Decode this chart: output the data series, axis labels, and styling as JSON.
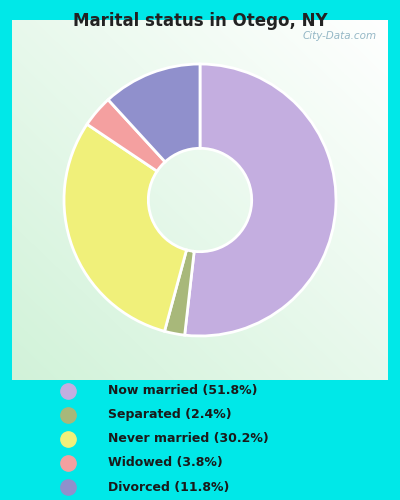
{
  "title": "Marital status in Otego, NY",
  "slices": [
    51.8,
    2.4,
    30.2,
    3.8,
    11.8
  ],
  "colors": [
    "#c4aee0",
    "#a8b87a",
    "#f0f07a",
    "#f4a0a0",
    "#9090cc"
  ],
  "labels": [
    "Now married (51.8%)",
    "Separated (2.4%)",
    "Never married (30.2%)",
    "Widowed (3.8%)",
    "Divorced (11.8%)"
  ],
  "legend_colors": [
    "#c4aee0",
    "#a8b87a",
    "#f0f07a",
    "#f4a0a0",
    "#9090cc"
  ],
  "bg_outer": "#00e8e8",
  "title_color": "#222222",
  "watermark": "City-Data.com",
  "start_angle": 90,
  "donut_width": 0.62
}
